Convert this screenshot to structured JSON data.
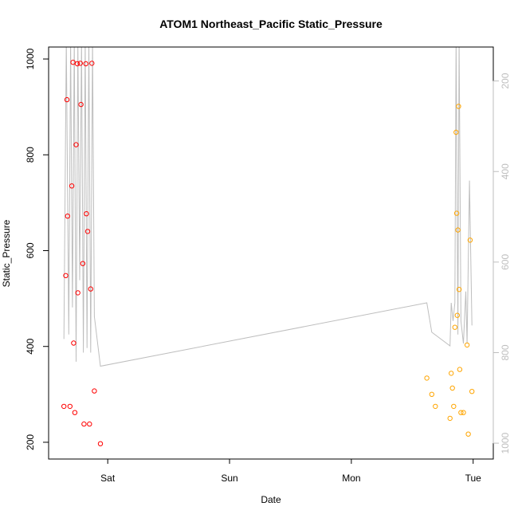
{
  "chart_data": {
    "type": "scatter",
    "title": "ATOM1 Northeast_Pacific Static_Pressure",
    "xlabel": "Date",
    "ylabel": "Static_Pressure",
    "x_ticks": [
      {
        "label": "Sat",
        "x": 0.0
      },
      {
        "label": "Sun",
        "x": 1.0
      },
      {
        "label": "Mon",
        "x": 2.0
      },
      {
        "label": "Tue",
        "x": 3.0
      }
    ],
    "y_ticks": [
      200,
      400,
      600,
      800,
      1000
    ],
    "y_range": [
      165,
      1025
    ],
    "x_range": [
      -0.42,
      3.1
    ],
    "right_axis": {
      "ticks": [
        200,
        400,
        600,
        800,
        1000
      ],
      "range": [
        125,
        1035
      ],
      "reversed": true,
      "color": "#bebebe"
    },
    "grid": false,
    "series": [
      {
        "color": "#ff0000",
        "points": [
          [
            -0.36,
            275
          ],
          [
            -0.345,
            548
          ],
          [
            -0.335,
            915
          ],
          [
            -0.33,
            672
          ],
          [
            -0.31,
            275
          ],
          [
            -0.295,
            735
          ],
          [
            -0.285,
            993
          ],
          [
            -0.28,
            407
          ],
          [
            -0.27,
            262
          ],
          [
            -0.26,
            821
          ],
          [
            -0.25,
            990
          ],
          [
            -0.245,
            512
          ],
          [
            -0.225,
            991
          ],
          [
            -0.22,
            905
          ],
          [
            -0.205,
            573
          ],
          [
            -0.195,
            238
          ],
          [
            -0.18,
            990
          ],
          [
            -0.175,
            677
          ],
          [
            -0.165,
            640
          ],
          [
            -0.15,
            238
          ],
          [
            -0.14,
            520
          ],
          [
            -0.13,
            991
          ],
          [
            -0.11,
            307
          ],
          [
            -0.06,
            197
          ]
        ]
      },
      {
        "color": "#ffa500",
        "points": [
          [
            2.62,
            334
          ],
          [
            2.66,
            300
          ],
          [
            2.69,
            275
          ],
          [
            2.81,
            250
          ],
          [
            2.82,
            344
          ],
          [
            2.83,
            313
          ],
          [
            2.84,
            275
          ],
          [
            2.85,
            440
          ],
          [
            2.86,
            847
          ],
          [
            2.865,
            678
          ],
          [
            2.87,
            465
          ],
          [
            2.875,
            643
          ],
          [
            2.88,
            901
          ],
          [
            2.885,
            519
          ],
          [
            2.89,
            352
          ],
          [
            2.9,
            262
          ],
          [
            2.92,
            262
          ],
          [
            2.95,
            403
          ],
          [
            2.96,
            217
          ],
          [
            2.975,
            622
          ],
          [
            2.99,
            306
          ]
        ]
      }
    ],
    "line_series": {
      "color": "#bebebe",
      "axis": "right",
      "points": [
        [
          -0.36,
          770
        ],
        [
          -0.34,
          110
        ],
        [
          -0.32,
          760
        ],
        [
          -0.305,
          110
        ],
        [
          -0.29,
          700
        ],
        [
          -0.275,
          110
        ],
        [
          -0.26,
          820
        ],
        [
          -0.245,
          110
        ],
        [
          -0.23,
          640
        ],
        [
          -0.215,
          110
        ],
        [
          -0.2,
          800
        ],
        [
          -0.185,
          110
        ],
        [
          -0.17,
          790
        ],
        [
          -0.155,
          110
        ],
        [
          -0.14,
          800
        ],
        [
          -0.125,
          110
        ],
        [
          -0.11,
          720
        ],
        [
          -0.06,
          830
        ],
        [
          2.62,
          690
        ],
        [
          2.66,
          755
        ],
        [
          2.81,
          785
        ],
        [
          2.82,
          690
        ],
        [
          2.835,
          730
        ],
        [
          2.85,
          690
        ],
        [
          2.86,
          110
        ],
        [
          2.875,
          760
        ],
        [
          2.885,
          110
        ],
        [
          2.9,
          730
        ],
        [
          2.92,
          780
        ],
        [
          2.94,
          665
        ],
        [
          2.95,
          780
        ],
        [
          2.97,
          420
        ],
        [
          2.99,
          740
        ]
      ]
    }
  }
}
